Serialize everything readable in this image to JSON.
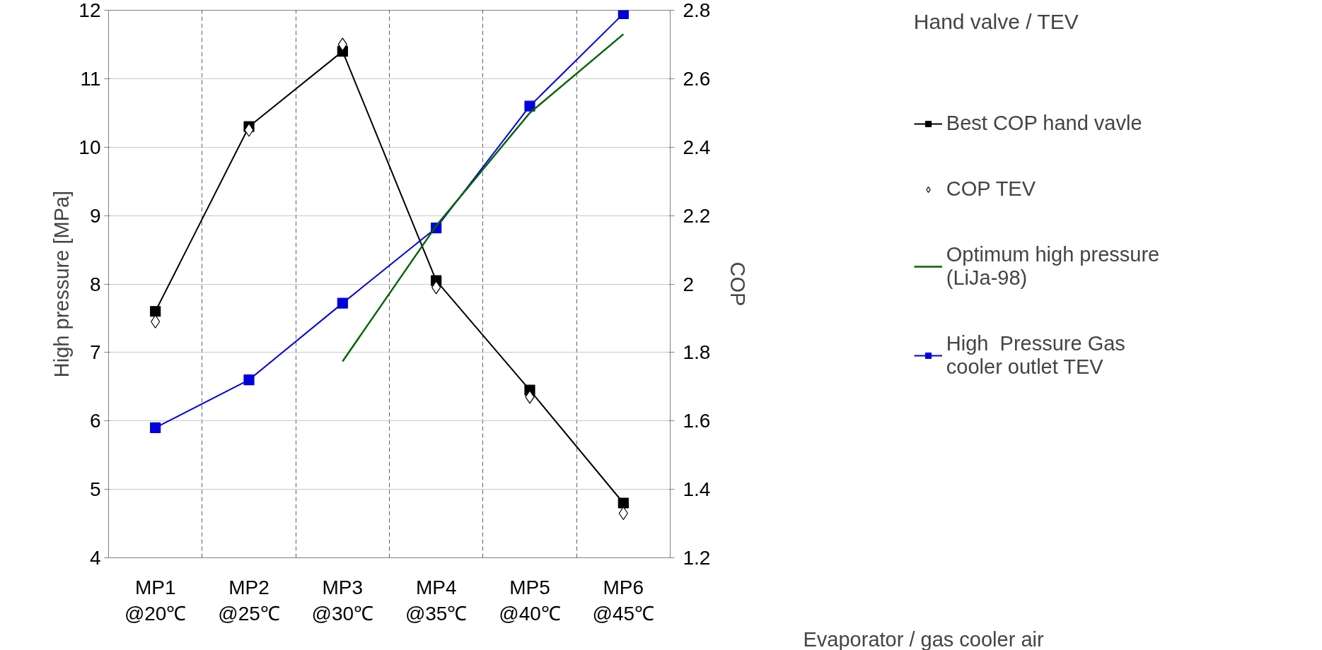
{
  "chart_data": {
    "type": "line",
    "title": "Hand valve / TEV",
    "xlabel": "Evaporator / gas cooler air",
    "ylabel": "High pressure [MPa]",
    "y2label": "COP",
    "categories": [
      "MP1\n@20℃",
      "MP2\n@25℃",
      "MP3\n@30℃",
      "MP4\n@35℃",
      "MP5\n@40℃",
      "MP6\n@45℃"
    ],
    "series": [
      {
        "name": "Best COP hand vavle",
        "color": "#000000",
        "axis": "y2",
        "marker": "square",
        "line_style": "solid",
        "values": [
          1.92,
          2.46,
          2.68,
          2.01,
          1.69,
          1.36
        ]
      },
      {
        "name": "COP TEV",
        "type": "scatter",
        "color": "#000000",
        "axis": "y2",
        "marker": "diamond",
        "values": [
          1.89,
          2.45,
          2.7,
          1.99,
          1.67,
          1.33
        ]
      },
      {
        "name": "Optimum high pressure\n(LiJa-98)",
        "color": "#006400",
        "marker": "none",
        "line_style": "solid",
        "values": [
          null,
          null,
          6.87,
          8.85,
          10.5,
          11.65
        ]
      },
      {
        "name": "High  Pressure Gas\ncooler outlet TEV",
        "color": "#0000dd",
        "marker": "square",
        "line_style": "solid",
        "values": [
          5.9,
          6.6,
          7.72,
          8.82,
          10.6,
          11.95
        ]
      }
    ],
    "ylim": [
      4,
      12
    ],
    "yticks": [
      4,
      5,
      6,
      7,
      8,
      9,
      10,
      11,
      12
    ],
    "y2lim": [
      1.2,
      2.8
    ],
    "y2ticks": [
      1.2,
      1.4,
      1.6,
      1.8,
      2,
      2.2,
      2.4,
      2.6,
      2.8
    ],
    "grid": true,
    "legend": "right"
  }
}
